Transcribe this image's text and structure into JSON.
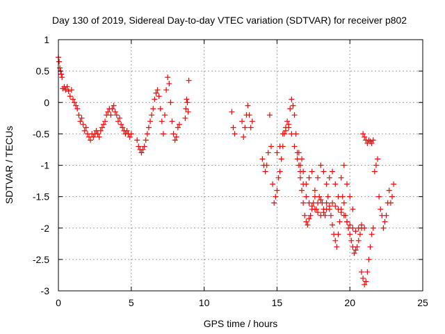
{
  "chart_data": {
    "type": "scatter",
    "title": "Day 130 of 2019, Sidereal Day-to-day VTEC variation (SDTVAR) for receiver p802",
    "xlabel": "GPS time / hours",
    "ylabel": "SDTVAR / TECUs",
    "xlim": [
      0,
      25
    ],
    "ylim": [
      -3,
      1
    ],
    "xticks": [
      0,
      5,
      10,
      15,
      20,
      25
    ],
    "xtick_labels": [
      "0",
      "5",
      "10",
      "15",
      "20",
      "25"
    ],
    "yticks": [
      1,
      0.5,
      0,
      -0.5,
      -1,
      -1.5,
      -2,
      -2.5,
      -3
    ],
    "ytick_labels": [
      "1",
      "0.5",
      "0",
      "-0.5",
      "-1",
      "-1.5",
      "-2",
      "-2.5",
      "-3"
    ],
    "grid": true,
    "marker": "+",
    "color": "#ff0000",
    "series": [
      {
        "name": "SDTVAR",
        "segments": [
          [
            [
              0.0,
              0.72
            ],
            [
              0.05,
              0.65
            ],
            [
              0.1,
              0.55
            ],
            [
              0.15,
              0.5
            ],
            [
              0.2,
              0.45
            ],
            [
              0.25,
              0.4
            ],
            [
              0.3,
              0.22
            ],
            [
              0.4,
              0.25
            ],
            [
              0.5,
              0.2
            ],
            [
              0.6,
              0.25
            ],
            [
              0.7,
              0.18
            ],
            [
              0.8,
              0.1
            ],
            [
              0.9,
              0.2
            ],
            [
              1.0,
              0.05
            ],
            [
              1.1,
              0.0
            ],
            [
              1.2,
              -0.05
            ],
            [
              1.3,
              -0.1
            ],
            [
              1.4,
              -0.2
            ],
            [
              1.5,
              -0.3
            ],
            [
              1.6,
              -0.25
            ],
            [
              1.7,
              -0.35
            ],
            [
              1.8,
              -0.45
            ],
            [
              1.9,
              -0.4
            ],
            [
              2.0,
              -0.5
            ],
            [
              2.1,
              -0.55
            ],
            [
              2.2,
              -0.6
            ],
            [
              2.3,
              -0.5
            ],
            [
              2.4,
              -0.55
            ],
            [
              2.5,
              -0.5
            ],
            [
              2.6,
              -0.45
            ],
            [
              2.7,
              -0.5
            ],
            [
              2.8,
              -0.55
            ],
            [
              2.9,
              -0.45
            ],
            [
              3.0,
              -0.4
            ],
            [
              3.1,
              -0.35
            ],
            [
              3.2,
              -0.3
            ],
            [
              3.3,
              -0.2
            ],
            [
              3.4,
              -0.15
            ],
            [
              3.5,
              -0.1
            ],
            [
              3.6,
              -0.2
            ],
            [
              3.7,
              -0.1
            ],
            [
              3.8,
              -0.05
            ],
            [
              3.9,
              -0.15
            ],
            [
              4.0,
              -0.2
            ],
            [
              4.1,
              -0.3
            ],
            [
              4.2,
              -0.25
            ],
            [
              4.3,
              -0.35
            ],
            [
              4.4,
              -0.4
            ],
            [
              4.5,
              -0.45
            ],
            [
              4.6,
              -0.5
            ],
            [
              4.7,
              -0.45
            ],
            [
              4.8,
              -0.5
            ],
            [
              4.9,
              -0.55
            ],
            [
              5.0,
              -0.5
            ]
          ],
          [
            [
              5.4,
              -0.6
            ],
            [
              5.5,
              -0.7
            ],
            [
              5.6,
              -0.75
            ],
            [
              5.7,
              -0.8
            ],
            [
              5.8,
              -0.75
            ],
            [
              5.9,
              -0.7
            ],
            [
              6.0,
              -0.6
            ],
            [
              6.1,
              -0.5
            ],
            [
              6.2,
              -0.4
            ],
            [
              6.3,
              -0.3
            ],
            [
              6.4,
              -0.2
            ],
            [
              6.5,
              -0.1
            ],
            [
              6.6,
              0.05
            ],
            [
              6.7,
              0.15
            ],
            [
              6.8,
              0.2
            ],
            [
              6.9,
              0.1
            ],
            [
              7.0,
              -0.1
            ],
            [
              7.1,
              -0.3
            ],
            [
              7.2,
              -0.5
            ],
            [
              7.3,
              -0.2
            ],
            [
              7.4,
              0.2
            ],
            [
              7.5,
              0.4
            ],
            [
              7.6,
              0.3
            ],
            [
              7.7,
              0.0
            ],
            [
              7.8,
              -0.3
            ],
            [
              7.9,
              -0.5
            ],
            [
              8.0,
              -0.6
            ],
            [
              8.1,
              -0.55
            ],
            [
              8.2,
              -0.4
            ],
            [
              8.3,
              -0.35
            ]
          ],
          [
            [
              8.7,
              -0.25
            ],
            [
              8.75,
              -0.1
            ],
            [
              8.8,
              0.05
            ],
            [
              8.85,
              0.0
            ],
            [
              8.9,
              -0.15
            ],
            [
              8.95,
              0.35
            ]
          ],
          [
            [
              11.9,
              -0.15
            ],
            [
              12.0,
              -0.4
            ],
            [
              12.1,
              -0.5
            ]
          ],
          [
            [
              12.6,
              -0.3
            ],
            [
              12.7,
              -0.55
            ],
            [
              12.8,
              -0.4
            ],
            [
              12.9,
              -0.2
            ],
            [
              13.0,
              -0.05
            ],
            [
              13.1,
              -0.2
            ],
            [
              13.2,
              -0.4
            ],
            [
              13.3,
              -0.3
            ]
          ],
          [
            [
              14.0,
              -0.9
            ],
            [
              14.1,
              -1.0
            ],
            [
              14.2,
              -1.1
            ],
            [
              14.3,
              -1.0
            ],
            [
              14.4,
              -0.8
            ],
            [
              14.5,
              -0.2
            ],
            [
              14.6,
              -0.7
            ],
            [
              14.7,
              -1.3
            ],
            [
              14.8,
              -1.6
            ],
            [
              14.9,
              -1.5
            ],
            [
              15.0,
              -1.4
            ],
            [
              15.1,
              -1.2
            ],
            [
              15.2,
              -1.1
            ],
            [
              15.3,
              -0.9
            ],
            [
              15.4,
              -0.7
            ],
            [
              15.5,
              -0.5
            ],
            [
              15.6,
              -0.4
            ],
            [
              15.7,
              -0.3
            ],
            [
              15.8,
              -0.35
            ],
            [
              15.9,
              -0.1
            ],
            [
              16.0,
              0.05
            ],
            [
              16.1,
              -0.05
            ],
            [
              16.2,
              -0.2
            ],
            [
              16.3,
              -0.5
            ],
            [
              16.4,
              -0.8
            ],
            [
              16.5,
              -1.0
            ],
            [
              16.6,
              -1.2
            ],
            [
              16.7,
              -1.4
            ],
            [
              16.8,
              -1.6
            ],
            [
              16.9,
              -1.8
            ],
            [
              17.0,
              -1.9
            ],
            [
              17.1,
              -1.95
            ],
            [
              17.2,
              -1.85
            ],
            [
              17.3,
              -1.8
            ],
            [
              17.4,
              -1.7
            ],
            [
              17.5,
              -1.6
            ],
            [
              17.6,
              -1.5
            ],
            [
              17.7,
              -1.7
            ],
            [
              17.8,
              -1.6
            ],
            [
              17.9,
              -1.5
            ],
            [
              18.0,
              -1.55
            ],
            [
              18.1,
              -1.6
            ],
            [
              18.2,
              -1.7
            ],
            [
              18.3,
              -1.8
            ],
            [
              18.4,
              -1.6
            ],
            [
              18.5,
              -1.5
            ],
            [
              18.6,
              -1.7
            ],
            [
              18.7,
              -1.8
            ],
            [
              18.8,
              -1.95
            ],
            [
              18.9,
              -2.1
            ],
            [
              19.0,
              -2.2
            ],
            [
              19.1,
              -2.3
            ],
            [
              19.2,
              -2.1
            ],
            [
              19.3,
              -1.9
            ],
            [
              19.4,
              -1.7
            ],
            [
              19.5,
              -1.5
            ],
            [
              19.6,
              -1.6
            ],
            [
              19.7,
              -1.8
            ],
            [
              19.8,
              -1.9
            ],
            [
              19.9,
              -2.0
            ],
            [
              20.0,
              -2.1
            ],
            [
              20.1,
              -2.2
            ],
            [
              20.2,
              -2.3
            ],
            [
              20.3,
              -2.4
            ],
            [
              20.4,
              -2.35
            ],
            [
              20.5,
              -2.3
            ],
            [
              20.6,
              -2.2
            ],
            [
              20.7,
              -2.1
            ],
            [
              20.8,
              -2.0
            ]
          ],
          [
            [
              15.0,
              -0.8
            ],
            [
              15.2,
              -0.7
            ],
            [
              15.4,
              -0.5
            ],
            [
              15.6,
              -0.45
            ],
            [
              15.8,
              -0.4
            ],
            [
              16.0,
              -0.5
            ],
            [
              16.2,
              -0.7
            ],
            [
              16.4,
              -0.9
            ],
            [
              16.6,
              -1.1
            ],
            [
              16.8,
              -1.3
            ],
            [
              17.0,
              -1.5
            ],
            [
              17.2,
              -1.6
            ],
            [
              17.4,
              -1.65
            ],
            [
              17.6,
              -1.7
            ],
            [
              17.8,
              -1.75
            ],
            [
              18.0,
              -1.8
            ],
            [
              18.2,
              -1.75
            ],
            [
              18.4,
              -1.7
            ],
            [
              18.6,
              -1.65
            ],
            [
              18.8,
              -1.6
            ],
            [
              19.0,
              -1.65
            ],
            [
              19.2,
              -1.7
            ],
            [
              19.4,
              -1.75
            ],
            [
              19.6,
              -1.8
            ],
            [
              19.8,
              -1.9
            ],
            [
              20.0,
              -1.95
            ],
            [
              20.2,
              -2.0
            ],
            [
              20.4,
              -2.05
            ],
            [
              20.6,
              -2.0
            ],
            [
              20.8,
              -1.95
            ],
            [
              21.0,
              -2.0
            ]
          ],
          [
            [
              16.5,
              -0.8
            ],
            [
              16.6,
              -1.0
            ],
            [
              16.7,
              -0.9
            ],
            [
              16.8,
              -1.1
            ],
            [
              17.0,
              -1.3
            ],
            [
              17.2,
              -1.2
            ],
            [
              17.4,
              -1.1
            ],
            [
              17.6,
              -1.4
            ],
            [
              17.8,
              -1.2
            ],
            [
              18.0,
              -1.0
            ],
            [
              18.2,
              -1.1
            ],
            [
              18.4,
              -1.3
            ],
            [
              18.6,
              -1.2
            ],
            [
              18.8,
              -1.1
            ],
            [
              19.0,
              -1.3
            ],
            [
              19.2,
              -1.5
            ],
            [
              19.4,
              -1.2
            ],
            [
              19.6,
              -1.0
            ],
            [
              19.8,
              -1.3
            ],
            [
              20.0,
              -1.5
            ],
            [
              20.2,
              -1.7
            ]
          ],
          [
            [
              20.8,
              -2.7
            ],
            [
              20.9,
              -2.8
            ],
            [
              21.0,
              -2.9
            ],
            [
              21.1,
              -2.85
            ],
            [
              21.2,
              -2.7
            ],
            [
              21.3,
              -2.5
            ],
            [
              21.4,
              -2.3
            ],
            [
              21.5,
              -2.1
            ],
            [
              21.6,
              -2.0
            ]
          ],
          [
            [
              20.9,
              -0.5
            ],
            [
              21.0,
              -0.55
            ],
            [
              21.1,
              -0.6
            ],
            [
              21.2,
              -0.65
            ],
            [
              21.3,
              -0.6
            ],
            [
              21.4,
              -0.62
            ],
            [
              21.5,
              -0.65
            ],
            [
              21.6,
              -0.6
            ]
          ],
          [
            [
              21.7,
              -1.1
            ],
            [
              21.8,
              -1.0
            ],
            [
              21.9,
              -0.9
            ],
            [
              22.0,
              -1.5
            ],
            [
              22.1,
              -1.7
            ],
            [
              22.2,
              -1.8
            ]
          ],
          [
            [
              22.3,
              -2.0
            ],
            [
              22.4,
              -1.9
            ],
            [
              22.5,
              -1.8
            ],
            [
              22.6,
              -1.6
            ],
            [
              22.7,
              -1.4
            ],
            [
              22.8,
              -1.6
            ],
            [
              22.9,
              -1.5
            ],
            [
              23.0,
              -1.3
            ]
          ]
        ]
      }
    ]
  }
}
